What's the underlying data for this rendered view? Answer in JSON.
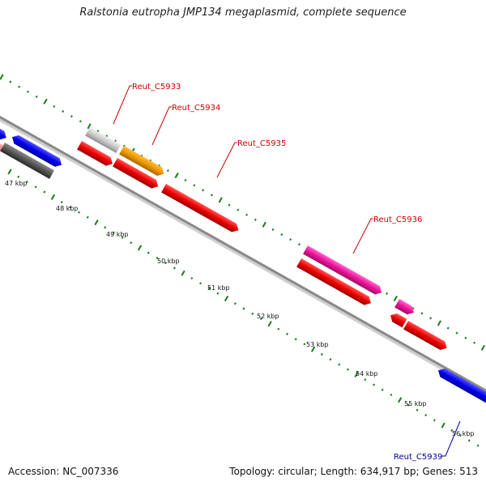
{
  "title": "Ralstonia eutropha JMP134 megaplasmid, complete sequence",
  "footer": {
    "accession": "Accession: NC_007336",
    "summary": "Topology: circular; Length: 634,917 bp; Genes: 513"
  },
  "ticks": [
    "47 kbp",
    "48 kbp",
    "49 kbp",
    "50 kbp",
    "51 kbp",
    "52 kbp",
    "53 kbp",
    "54 kbp",
    "55 kbp",
    "56 kbp"
  ],
  "genes": [
    {
      "label": "Reut_C5933",
      "color": "#cc0000"
    },
    {
      "label": "Reut_C5934",
      "color": "#cc0000"
    },
    {
      "label": "Reut_C5935",
      "color": "#cc0000"
    },
    {
      "label": "Reut_C5936",
      "color": "#cc0000"
    },
    {
      "label": "Reut_C5939",
      "color": "#000099"
    }
  ],
  "colors": {
    "backbone": "#8a8a8a",
    "tick_green": "#1a7a1a",
    "red": "#ee0000",
    "blue": "#0000ee",
    "grey": "#c8c8c8",
    "dark_grey": "#555555",
    "orange": "#ee9900",
    "magenta": "#ee1199",
    "pink": "#ee7777"
  }
}
